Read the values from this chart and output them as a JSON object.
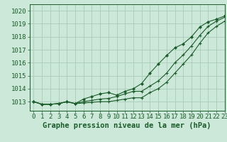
{
  "bg_color": "#cce8d8",
  "grid_color": "#aaccbb",
  "line_color": "#1a5c2a",
  "xlabel": "Graphe pression niveau de la mer (hPa)",
  "ylim": [
    1012.3,
    1020.5
  ],
  "xlim": [
    -0.5,
    23
  ],
  "yticks": [
    1013,
    1014,
    1015,
    1016,
    1017,
    1018,
    1019,
    1020
  ],
  "xticks": [
    0,
    1,
    2,
    3,
    4,
    5,
    6,
    7,
    8,
    9,
    10,
    11,
    12,
    13,
    14,
    15,
    16,
    17,
    18,
    19,
    20,
    21,
    22,
    23
  ],
  "series1": [
    1013.0,
    1012.8,
    1012.8,
    1012.85,
    1013.0,
    1012.85,
    1012.9,
    1012.95,
    1013.0,
    1013.0,
    1013.1,
    1013.2,
    1013.3,
    1013.3,
    1013.7,
    1014.0,
    1014.5,
    1015.2,
    1015.9,
    1016.6,
    1017.5,
    1018.3,
    1018.8,
    1019.2
  ],
  "series2": [
    1013.0,
    1012.8,
    1012.8,
    1012.85,
    1013.0,
    1012.85,
    1013.0,
    1013.1,
    1013.2,
    1013.25,
    1013.4,
    1013.6,
    1013.8,
    1013.8,
    1014.2,
    1014.6,
    1015.2,
    1016.0,
    1016.6,
    1017.3,
    1018.1,
    1018.8,
    1019.2,
    1019.5
  ],
  "series3": [
    1013.0,
    1012.8,
    1012.8,
    1012.85,
    1013.0,
    1012.85,
    1013.2,
    1013.4,
    1013.6,
    1013.7,
    1013.5,
    1013.8,
    1014.0,
    1014.4,
    1015.2,
    1015.9,
    1016.55,
    1017.15,
    1017.45,
    1018.0,
    1018.75,
    1019.15,
    1019.35,
    1019.6
  ],
  "tick_fontsize": 6.5,
  "label_fontsize": 7.5
}
